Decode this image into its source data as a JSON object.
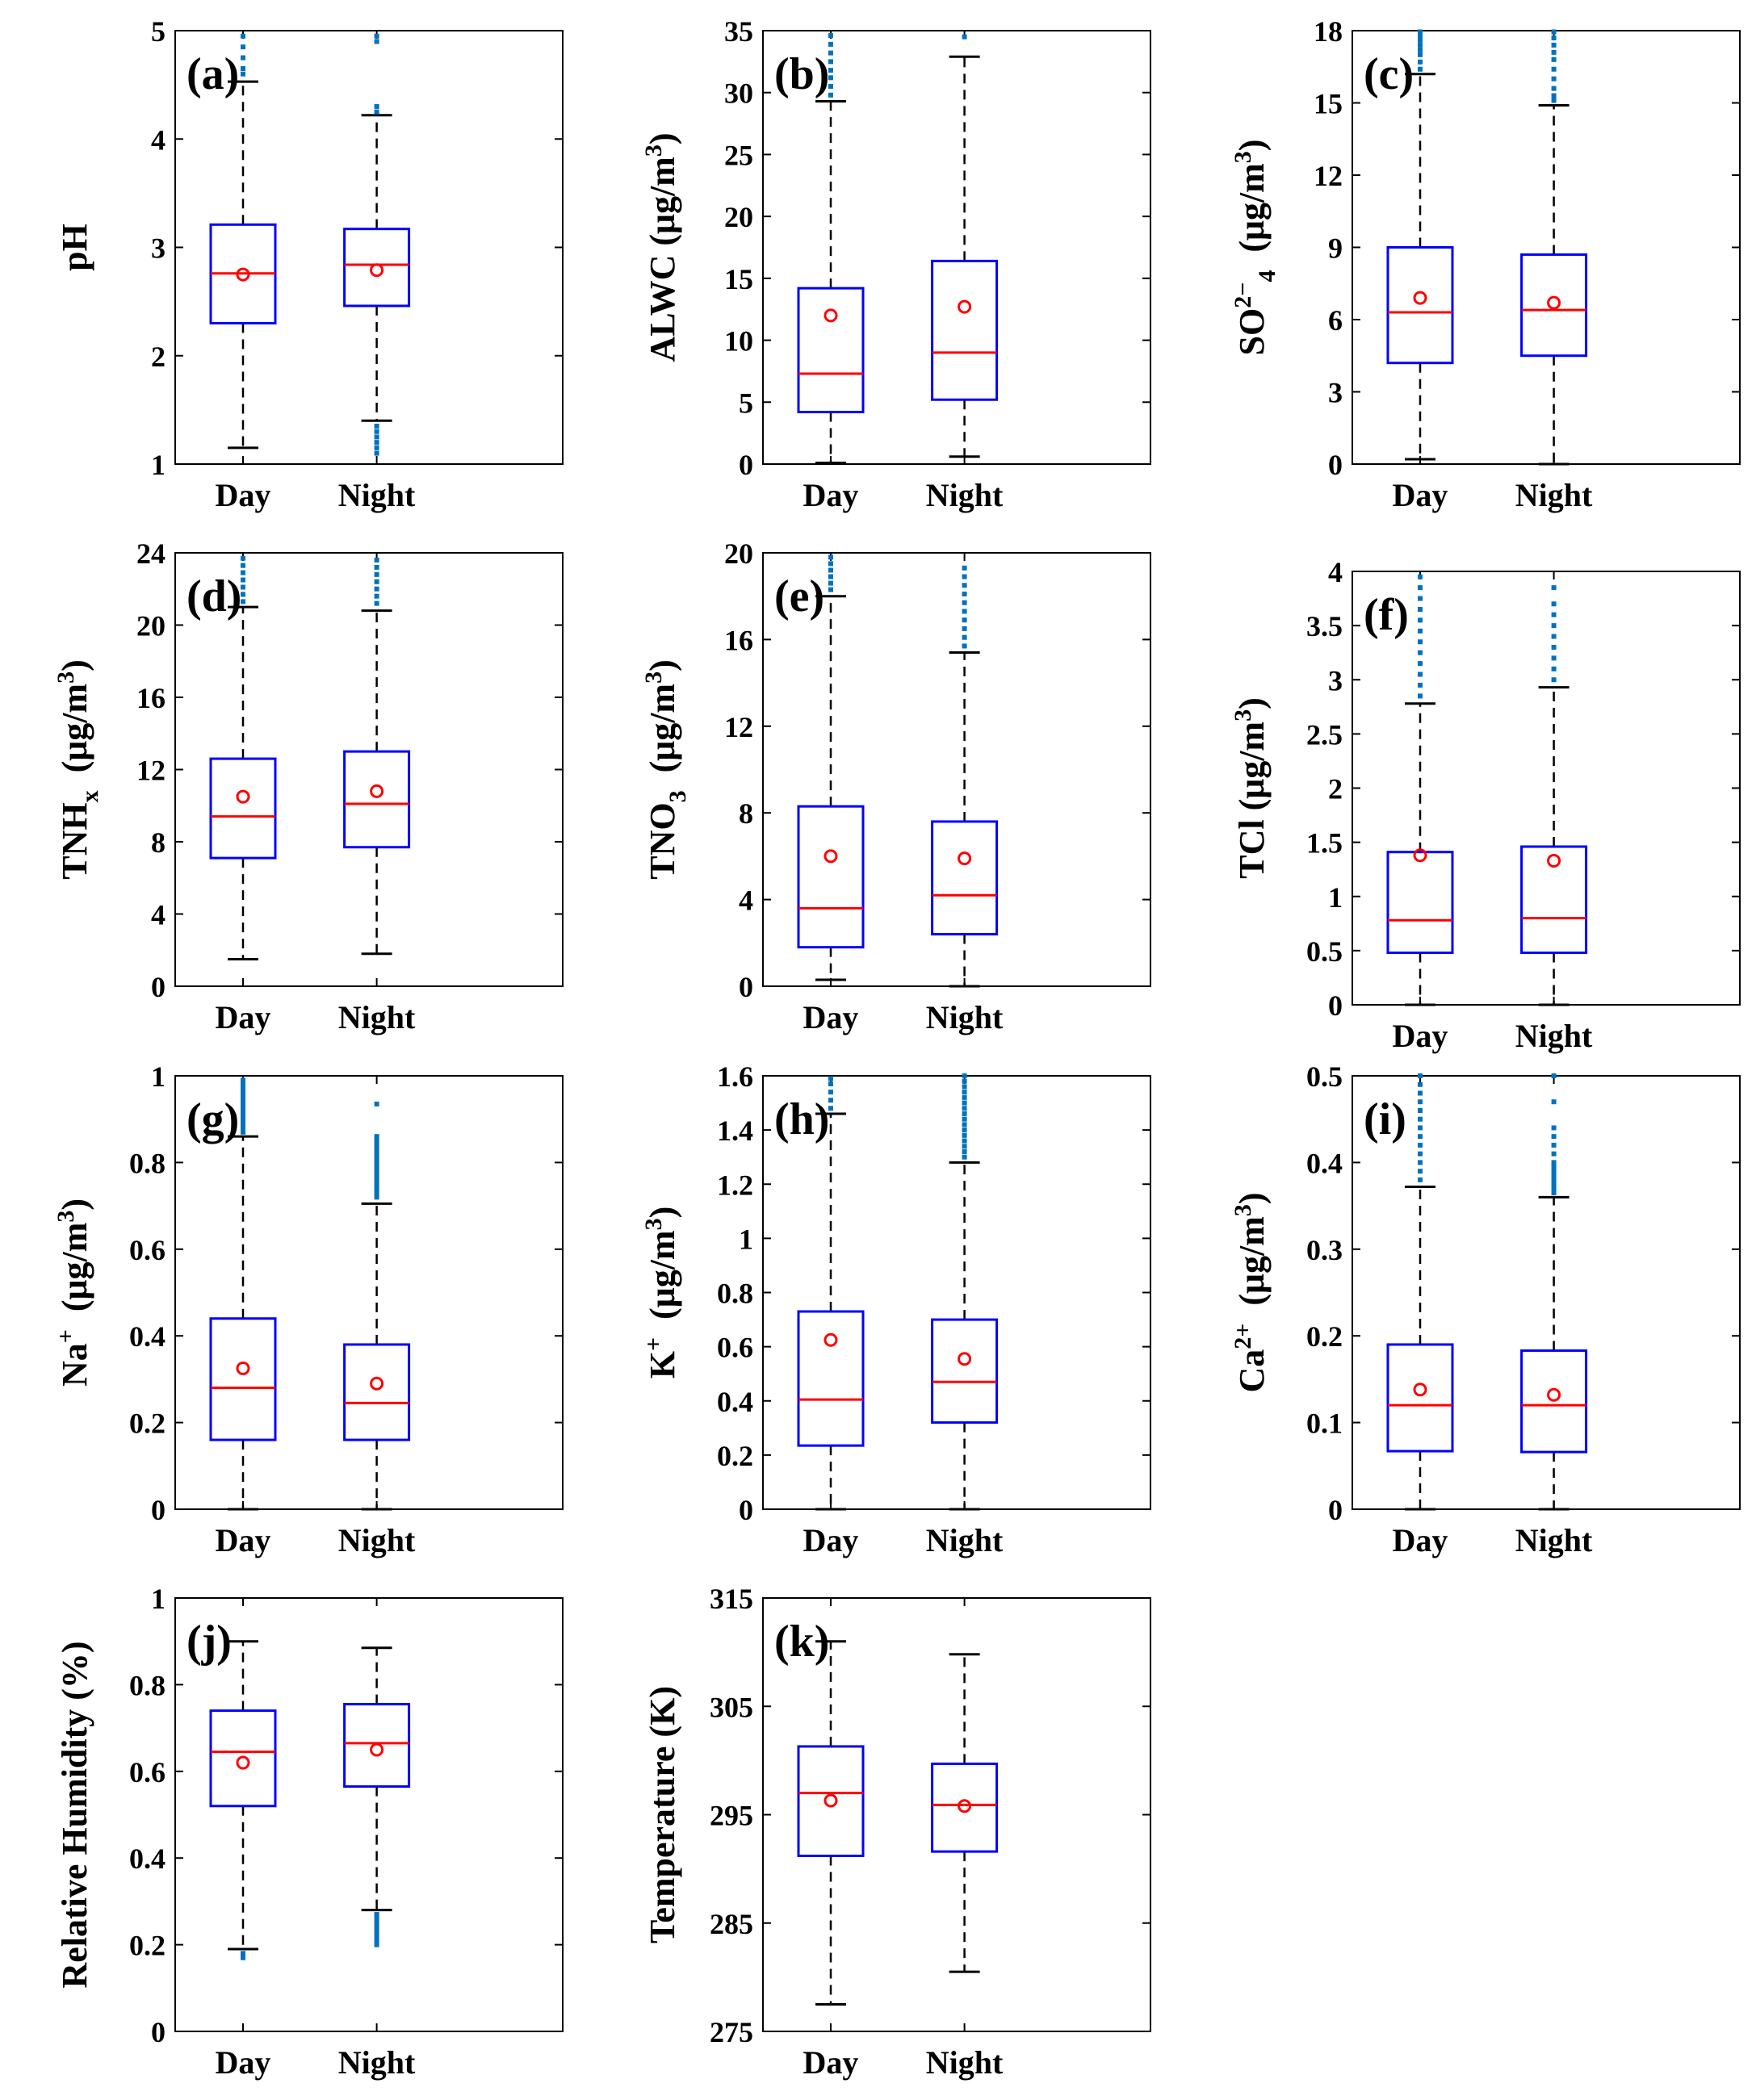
{
  "categories": [
    "Day",
    "Night"
  ],
  "colors": {
    "box": "#0000ff",
    "median": "#ff0000",
    "mean": "#ff0000",
    "whisker": "#000000",
    "outlier": "#0072bd",
    "axis": "#000000",
    "background": "#ffffff"
  },
  "chart_data": [
    {
      "type": "boxplot",
      "panel_label": "(a)",
      "ylabel": "pH",
      "ylabel_sub": "",
      "ylabel_sup": "",
      "ylabel_unit": "",
      "ylim": [
        1,
        5
      ],
      "yticks": [
        1,
        2,
        3,
        4,
        5
      ],
      "ytick_labels": [
        "1",
        "2",
        "3",
        "4",
        "5"
      ],
      "categories": [
        "Day",
        "Night"
      ],
      "boxes": [
        {
          "whisker_low": 1.15,
          "q1": 2.3,
          "median": 2.76,
          "q3": 3.21,
          "whisker_high": 4.53,
          "mean": 2.75,
          "outliers": [
            4.6,
            4.65,
            4.75,
            4.85,
            4.95
          ],
          "low_outliers": []
        },
        {
          "whisker_low": 1.4,
          "q1": 2.46,
          "median": 2.84,
          "q3": 3.17,
          "whisker_high": 4.22,
          "mean": 2.79,
          "outliers": [
            4.25,
            4.3,
            4.9,
            4.95
          ],
          "low_outliers": [
            1.1,
            1.15,
            1.2,
            1.25,
            1.3,
            1.35
          ]
        }
      ]
    },
    {
      "type": "boxplot",
      "panel_label": "(b)",
      "ylabel": "ALWC",
      "ylabel_sub": "",
      "ylabel_sup": "",
      "ylabel_unit": "(μg/m3)",
      "ylim": [
        0,
        35
      ],
      "yticks": [
        0,
        5,
        10,
        15,
        20,
        25,
        30,
        35
      ],
      "ytick_labels": [
        "0",
        "5",
        "10",
        "15",
        "20",
        "25",
        "30",
        "35"
      ],
      "categories": [
        "Day",
        "Night"
      ],
      "boxes": [
        {
          "whisker_low": 0.1,
          "q1": 4.2,
          "median": 7.3,
          "q3": 14.2,
          "whisker_high": 29.3,
          "mean": 12.0,
          "outliers": [
            29.8,
            30.5,
            31.2,
            31.8,
            32.5,
            33.2,
            33.9,
            34.6
          ],
          "low_outliers": []
        },
        {
          "whisker_low": 0.6,
          "q1": 5.2,
          "median": 9.0,
          "q3": 16.4,
          "whisker_high": 32.9,
          "mean": 12.7,
          "outliers": [
            34.5
          ],
          "low_outliers": []
        }
      ]
    },
    {
      "type": "boxplot",
      "panel_label": "(c)",
      "ylabel": "SO",
      "ylabel_sub": "4",
      "ylabel_sup": "2−",
      "ylabel_unit": "(μg/m3)",
      "ylim": [
        0,
        18
      ],
      "yticks": [
        0,
        3,
        6,
        9,
        12,
        15,
        18
      ],
      "ytick_labels": [
        "0",
        "3",
        "6",
        "9",
        "12",
        "15",
        "18"
      ],
      "categories": [
        "Day",
        "Night"
      ],
      "boxes": [
        {
          "whisker_low": 0.2,
          "q1": 4.2,
          "median": 6.3,
          "q3": 9.0,
          "whisker_high": 16.2,
          "mean": 6.9,
          "outliers": [
            16.4,
            16.7,
            17.0,
            17.2,
            17.4,
            17.6,
            17.8,
            17.95
          ],
          "low_outliers": []
        },
        {
          "whisker_low": 0.0,
          "q1": 4.5,
          "median": 6.4,
          "q3": 8.7,
          "whisker_high": 14.9,
          "mean": 6.7,
          "outliers": [
            15.1,
            15.3,
            15.6,
            16.0,
            16.4,
            16.8,
            17.1,
            17.4,
            17.7,
            17.95
          ],
          "low_outliers": []
        }
      ]
    },
    {
      "type": "boxplot",
      "panel_label": "(d)",
      "ylabel": "TNH",
      "ylabel_sub": "x",
      "ylabel_sup": "",
      "ylabel_unit": "(μg/m3)",
      "ylim": [
        0,
        24
      ],
      "yticks": [
        0,
        4,
        8,
        12,
        16,
        20,
        24
      ],
      "ytick_labels": [
        "0",
        "4",
        "8",
        "12",
        "16",
        "20",
        "24"
      ],
      "categories": [
        "Day",
        "Night"
      ],
      "boxes": [
        {
          "whisker_low": 1.5,
          "q1": 7.1,
          "median": 9.4,
          "q3": 12.6,
          "whisker_high": 21.0,
          "mean": 10.5,
          "outliers": [
            21.3,
            21.7,
            22.1,
            22.5,
            22.9,
            23.3,
            23.7
          ],
          "low_outliers": []
        },
        {
          "whisker_low": 1.8,
          "q1": 7.7,
          "median": 10.1,
          "q3": 13.0,
          "whisker_high": 20.8,
          "mean": 10.8,
          "outliers": [
            21.2,
            21.6,
            22.0,
            22.4,
            22.8,
            23.2,
            23.6
          ],
          "low_outliers": []
        }
      ]
    },
    {
      "type": "boxplot",
      "panel_label": "(e)",
      "ylabel": "TNO",
      "ylabel_sub": "3",
      "ylabel_sup": "",
      "ylabel_unit": "(μg/m3)",
      "ylim": [
        0,
        20
      ],
      "yticks": [
        0,
        4,
        8,
        12,
        16,
        20
      ],
      "ytick_labels": [
        "0",
        "4",
        "8",
        "12",
        "16",
        "20"
      ],
      "categories": [
        "Day",
        "Night"
      ],
      "boxes": [
        {
          "whisker_low": 0.3,
          "q1": 1.8,
          "median": 3.6,
          "q3": 8.3,
          "whisker_high": 18.0,
          "mean": 6.0,
          "outliers": [
            18.3,
            18.6,
            18.9,
            19.2,
            19.5,
            19.8
          ],
          "low_outliers": []
        },
        {
          "whisker_low": 0.0,
          "q1": 2.4,
          "median": 4.2,
          "q3": 7.6,
          "whisker_high": 15.4,
          "mean": 5.9,
          "outliers": [
            15.7,
            16.1,
            16.5,
            16.9,
            17.3,
            17.7,
            18.1,
            18.5,
            18.9,
            19.3
          ],
          "low_outliers": []
        }
      ]
    },
    {
      "type": "boxplot",
      "panel_label": "(f)",
      "ylabel": "TCl",
      "ylabel_sub": "",
      "ylabel_sup": "",
      "ylabel_unit": "(μg/m3)",
      "ylim": [
        0,
        4
      ],
      "yticks": [
        0,
        0.5,
        1,
        1.5,
        2,
        2.5,
        3,
        3.5,
        4
      ],
      "ytick_labels": [
        "0",
        "0.5",
        "1",
        "1.5",
        "2",
        "2.5",
        "3",
        "3.5",
        "4"
      ],
      "categories": [
        "Day",
        "Night"
      ],
      "boxes": [
        {
          "whisker_low": 0.0,
          "q1": 0.48,
          "median": 0.78,
          "q3": 1.41,
          "whisker_high": 2.78,
          "mean": 1.38,
          "outliers": [
            2.85,
            2.95,
            3.05,
            3.15,
            3.25,
            3.35,
            3.45,
            3.55,
            3.65,
            3.75,
            3.85,
            3.95
          ],
          "low_outliers": []
        },
        {
          "whisker_low": 0.0,
          "q1": 0.48,
          "median": 0.8,
          "q3": 1.46,
          "whisker_high": 2.93,
          "mean": 1.33,
          "outliers": [
            3.0,
            3.1,
            3.2,
            3.3,
            3.4,
            3.5,
            3.6,
            3.7,
            3.85
          ],
          "low_outliers": []
        }
      ]
    },
    {
      "type": "boxplot",
      "panel_label": "(g)",
      "ylabel": "Na",
      "ylabel_sub": "",
      "ylabel_sup": "+",
      "ylabel_unit": "(μg/m3)",
      "ylim": [
        0,
        1
      ],
      "yticks": [
        0,
        0.2,
        0.4,
        0.6,
        0.8,
        1
      ],
      "ytick_labels": [
        "0",
        "0.2",
        "0.4",
        "0.6",
        "0.8",
        "1"
      ],
      "categories": [
        "Day",
        "Night"
      ],
      "boxes": [
        {
          "whisker_low": 0.0,
          "q1": 0.16,
          "median": 0.28,
          "q3": 0.44,
          "whisker_high": 0.86,
          "mean": 0.325,
          "outliers": [
            0.87,
            0.88,
            0.89,
            0.9,
            0.91,
            0.92,
            0.93,
            0.94,
            0.95,
            0.96,
            0.97,
            0.98,
            0.99
          ],
          "low_outliers": []
        },
        {
          "whisker_low": 0.0,
          "q1": 0.16,
          "median": 0.245,
          "q3": 0.38,
          "whisker_high": 0.705,
          "mean": 0.29,
          "outliers": [
            0.72,
            0.73,
            0.74,
            0.75,
            0.76,
            0.77,
            0.78,
            0.79,
            0.8,
            0.81,
            0.82,
            0.83,
            0.84,
            0.85,
            0.86,
            0.935
          ],
          "low_outliers": []
        }
      ]
    },
    {
      "type": "boxplot",
      "panel_label": "(h)",
      "ylabel": "K",
      "ylabel_sub": "",
      "ylabel_sup": "+",
      "ylabel_unit": "(μg/m3)",
      "ylim": [
        0,
        1.6
      ],
      "yticks": [
        0,
        0.2,
        0.4,
        0.6,
        0.8,
        1,
        1.2,
        1.4,
        1.6
      ],
      "ytick_labels": [
        "0",
        "0.2",
        "0.4",
        "0.6",
        "0.8",
        "1",
        "1.2",
        "1.4",
        "1.6"
      ],
      "categories": [
        "Day",
        "Night"
      ],
      "boxes": [
        {
          "whisker_low": 0.0,
          "q1": 0.235,
          "median": 0.405,
          "q3": 0.73,
          "whisker_high": 1.46,
          "mean": 0.625,
          "outliers": [
            1.48,
            1.51,
            1.54,
            1.57,
            1.59
          ],
          "low_outliers": []
        },
        {
          "whisker_low": 0.0,
          "q1": 0.32,
          "median": 0.47,
          "q3": 0.7,
          "whisker_high": 1.28,
          "mean": 0.555,
          "outliers": [
            1.3,
            1.32,
            1.34,
            1.36,
            1.38,
            1.4,
            1.42,
            1.44,
            1.46,
            1.48,
            1.5,
            1.52,
            1.54,
            1.56,
            1.58,
            1.6
          ],
          "low_outliers": []
        }
      ]
    },
    {
      "type": "boxplot",
      "panel_label": "(i)",
      "ylabel": "Ca",
      "ylabel_sub": "",
      "ylabel_sup": "2+",
      "ylabel_unit": "(μg/m3)",
      "ylim": [
        0,
        0.5
      ],
      "yticks": [
        0,
        0.1,
        0.2,
        0.3,
        0.4,
        0.5
      ],
      "ytick_labels": [
        "0",
        "0.1",
        "0.2",
        "0.3",
        "0.4",
        "0.5"
      ],
      "categories": [
        "Day",
        "Night"
      ],
      "boxes": [
        {
          "whisker_low": 0.0,
          "q1": 0.067,
          "median": 0.12,
          "q3": 0.19,
          "whisker_high": 0.372,
          "mean": 0.138,
          "outliers": [
            0.38,
            0.39,
            0.4,
            0.41,
            0.42,
            0.43,
            0.44,
            0.45,
            0.46,
            0.47,
            0.48,
            0.49,
            0.5
          ],
          "low_outliers": []
        },
        {
          "whisker_low": 0.0,
          "q1": 0.066,
          "median": 0.12,
          "q3": 0.183,
          "whisker_high": 0.36,
          "mean": 0.132,
          "outliers": [
            0.365,
            0.37,
            0.375,
            0.38,
            0.385,
            0.39,
            0.395,
            0.4,
            0.41,
            0.42,
            0.43,
            0.44,
            0.47,
            0.5
          ],
          "low_outliers": []
        }
      ]
    },
    {
      "type": "boxplot",
      "panel_label": "(j)",
      "ylabel": "Relative Humidity (%)",
      "ylabel_sub": "",
      "ylabel_sup": "",
      "ylabel_unit": "",
      "ylim": [
        0,
        1
      ],
      "yticks": [
        0,
        0.2,
        0.4,
        0.6,
        0.8,
        1
      ],
      "ytick_labels": [
        "0",
        "0.2",
        "0.4",
        "0.6",
        "0.8",
        "1"
      ],
      "categories": [
        "Day",
        "Night"
      ],
      "boxes": [
        {
          "whisker_low": 0.19,
          "q1": 0.52,
          "median": 0.645,
          "q3": 0.74,
          "whisker_high": 0.9,
          "mean": 0.62,
          "outliers": [],
          "low_outliers": [
            0.17,
            0.18
          ]
        },
        {
          "whisker_low": 0.28,
          "q1": 0.565,
          "median": 0.665,
          "q3": 0.755,
          "whisker_high": 0.885,
          "mean": 0.65,
          "outliers": [],
          "low_outliers": [
            0.2,
            0.21,
            0.22,
            0.23,
            0.24,
            0.25,
            0.26,
            0.27
          ]
        }
      ]
    },
    {
      "type": "boxplot",
      "panel_label": "(k)",
      "ylabel": "Temperature (K)",
      "ylabel_sub": "",
      "ylabel_sup": "",
      "ylabel_unit": "",
      "ylim": [
        275,
        315
      ],
      "yticks": [
        275,
        285,
        295,
        305,
        315
      ],
      "ytick_labels": [
        "275",
        "285",
        "295",
        "305",
        "315"
      ],
      "categories": [
        "Day",
        "Night"
      ],
      "boxes": [
        {
          "whisker_low": 277.5,
          "q1": 291.2,
          "median": 297.0,
          "q3": 301.3,
          "whisker_high": 311.0,
          "mean": 296.3,
          "outliers": [],
          "low_outliers": []
        },
        {
          "whisker_low": 280.5,
          "q1": 291.6,
          "median": 295.9,
          "q3": 299.7,
          "whisker_high": 309.8,
          "mean": 295.8,
          "outliers": [],
          "low_outliers": []
        }
      ]
    }
  ]
}
